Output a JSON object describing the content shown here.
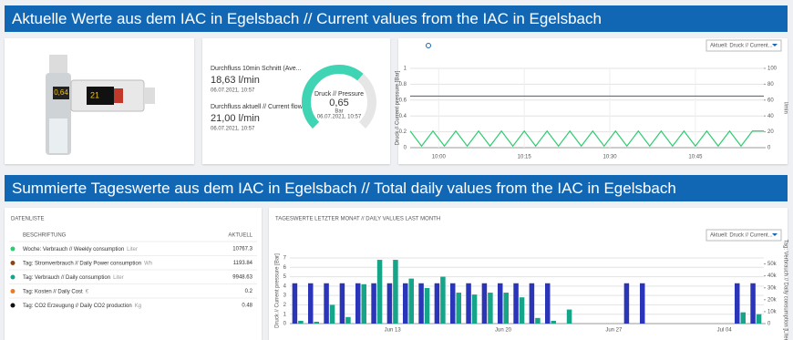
{
  "header_current": "Aktuelle Werte aus dem IAC in Egelsbach // Current values from the IAC in Egelsbach",
  "header_daily": "Summierte Tageswerte aus dem IAC in Egelsbach // Total daily values from the IAC in Egelsbach",
  "device": {
    "display_pressure": "0,64",
    "display_flow": "21"
  },
  "kpis": [
    {
      "label": "Durchfluss 10min Schnitt (Ave...",
      "value": "18,63 l/min",
      "date": "06.07.2021, 10:57"
    },
    {
      "label": "Durchfluss aktuell // Current flow",
      "value": "21,00 l/min",
      "date": "06.07.2021, 10:57"
    }
  ],
  "gauge": {
    "label": "Druck // Pressure",
    "value": 0.65,
    "value_label": "0,65",
    "unit": "Bar",
    "date": "06.07.2021, 10:57"
  },
  "line_chart": {
    "type": "line",
    "selector": "Aktuell: Druck // Current...",
    "ylabel": "Druck // Current pressure [Bar]",
    "y2label": "l/min",
    "x": [
      "09:55",
      "09:57",
      "09:59",
      "10:01",
      "10:03",
      "10:05",
      "10:07",
      "10:09",
      "10:11",
      "10:13",
      "10:15",
      "10:17",
      "10:19",
      "10:21",
      "10:23",
      "10:25",
      "10:27",
      "10:29",
      "10:31",
      "10:33",
      "10:35",
      "10:37",
      "10:39",
      "10:41",
      "10:43",
      "10:45",
      "10:47",
      "10:49",
      "10:51",
      "10:53",
      "10:55",
      "10:57"
    ],
    "xlim": [
      "09:55",
      "10:57"
    ],
    "xticks": [
      "10:00",
      "10:15",
      "10:30",
      "10:45"
    ],
    "ylim": [
      0,
      1
    ],
    "yticks": [
      0,
      0.2,
      0.4,
      0.6,
      0.8,
      1
    ],
    "y2lim": [
      0,
      100
    ],
    "y2ticks": [
      0,
      20,
      40,
      60,
      80,
      100
    ],
    "grid": true,
    "series": [
      {
        "color": "#5a6f90",
        "values": [
          0.65,
          0.65,
          0.65,
          0.65,
          0.65,
          0.65,
          0.65,
          0.65,
          0.65,
          0.65,
          0.65,
          0.65,
          0.65,
          0.65,
          0.65,
          0.65,
          0.65,
          0.65,
          0.65,
          0.65,
          0.65,
          0.65,
          0.65,
          0.65,
          0.65,
          0.65,
          0.65,
          0.65,
          0.65,
          0.65,
          0.65,
          0.65
        ]
      },
      {
        "color": "#2ecc71",
        "axis": "y2",
        "values": [
          21,
          2,
          21,
          2,
          21,
          2,
          21,
          2,
          21,
          2,
          21,
          2,
          21,
          2,
          21,
          2,
          21,
          2,
          21,
          2,
          21,
          2,
          21,
          2,
          21,
          2,
          21,
          2,
          21,
          2,
          21,
          21
        ]
      }
    ]
  },
  "datalist": {
    "title": "DATENLISTE",
    "columns": [
      "BESCHRIFTUNG",
      "AKTUELL"
    ],
    "rows": [
      {
        "color": "#2ecc71",
        "label": "Woche: Verbrauch // Weekly consumption",
        "unit": "Liter",
        "value": 10767.3
      },
      {
        "color": "#8b4513",
        "label": "Tag: Stromverbrauch // Daily Power consumption",
        "unit": "Wh",
        "value": 1193.84
      },
      {
        "color": "#17a589",
        "label": "Tag: Verbrauch // Daily consumption",
        "unit": "Liter",
        "value": 9948.63
      },
      {
        "color": "#e67e22",
        "label": "Tag: Kosten // Daily Cost",
        "unit": "€",
        "value": 0.2
      },
      {
        "color": "#111111",
        "label": "Tag: CO2 Erzeugung // Daily CO2 production",
        "unit": "Kg",
        "value": 0.48
      }
    ]
  },
  "bar_chart": {
    "type": "bar",
    "title": "TAGESWERTE LETZTER MONAT // DAILY VALUES LAST MONTH",
    "selector": "Aktuell: Druck // Current...",
    "ylabel": "Druck // Current pressure [Bar]",
    "y2label": "Tag: Verbrauch // Daily consumption [Liter]",
    "categories": [
      null,
      null,
      null,
      null,
      null,
      null,
      "Jun 13",
      null,
      null,
      null,
      null,
      null,
      null,
      "Jun 20",
      null,
      null,
      null,
      null,
      null,
      null,
      "Jun 27",
      null,
      null,
      null,
      null,
      null,
      null,
      "Jul 04",
      null,
      null
    ],
    "ylim": [
      0,
      7
    ],
    "yticks": [
      0,
      1,
      2,
      3,
      4,
      5,
      6,
      7
    ],
    "y2lim": [
      0,
      55000
    ],
    "y2ticks": [
      0,
      {
        "value": 10000,
        "label": "10k"
      },
      {
        "value": 20000,
        "label": "20k"
      },
      {
        "value": 30000,
        "label": "30k"
      },
      {
        "value": 40000,
        "label": "40k"
      },
      {
        "value": 50000,
        "label": "50k"
      }
    ],
    "grid": true,
    "series": [
      {
        "color": "#2a35b8",
        "values": [
          4.3,
          4.3,
          4.3,
          4.3,
          4.3,
          4.3,
          4.3,
          4.3,
          4.3,
          4.3,
          4.3,
          4.3,
          4.3,
          4.3,
          4.3,
          4.3,
          4.3,
          0,
          0,
          0,
          0,
          4.3,
          4.3,
          0,
          0,
          0,
          0,
          0,
          4.3,
          4.3
        ]
      },
      {
        "color": "#17a589",
        "values": [
          0.3,
          0.2,
          2,
          0.7,
          4.2,
          6.8,
          6.8,
          4.8,
          3.8,
          5,
          3.3,
          3.1,
          3.3,
          3.3,
          2.8,
          0.6,
          0.3,
          1.5,
          0,
          0,
          0,
          0,
          0,
          0,
          0,
          0,
          0,
          0,
          1.2,
          1
        ]
      }
    ]
  }
}
